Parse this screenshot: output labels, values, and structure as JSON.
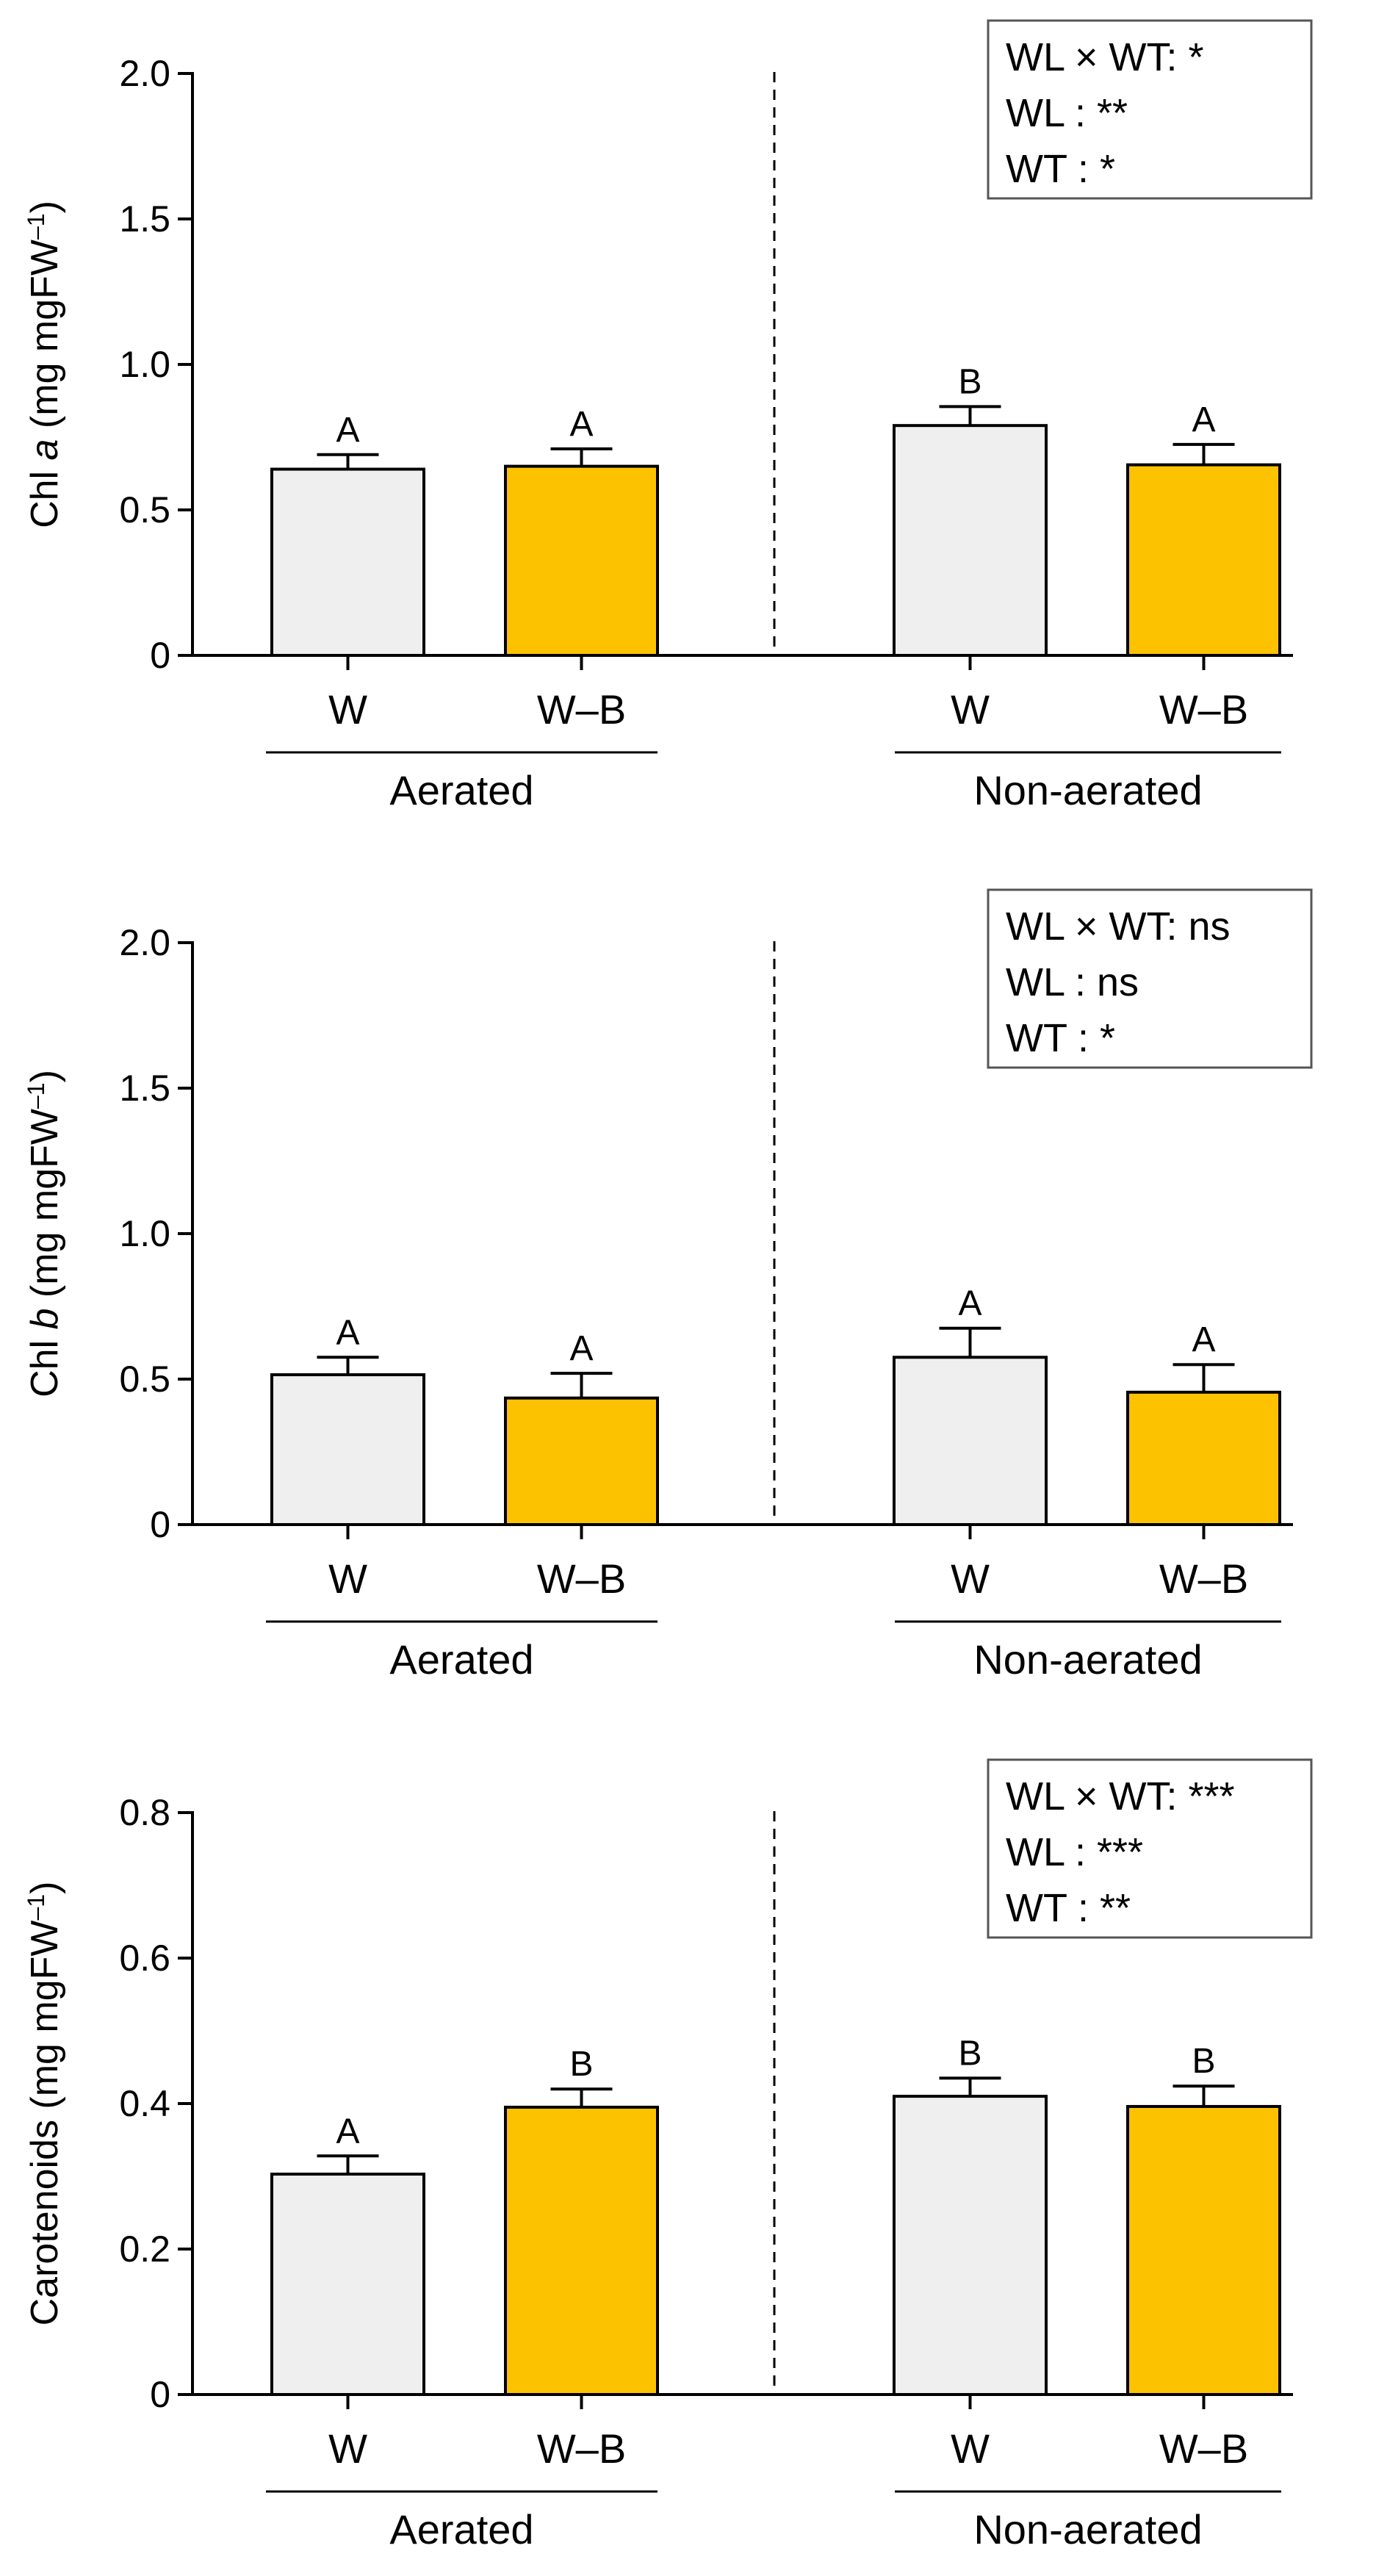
{
  "chart_data": [
    {
      "type": "bar",
      "ylabel_parts": [
        {
          "text": "Chl ",
          "italic": false,
          "sup": false
        },
        {
          "text": "a",
          "italic": true,
          "sup": false
        },
        {
          "text": " (mg mgFW",
          "italic": false,
          "sup": false
        },
        {
          "text": "–1",
          "italic": false,
          "sup": true
        },
        {
          "text": ")",
          "italic": false,
          "sup": false
        }
      ],
      "ylim": [
        0,
        2.0
      ],
      "yticks": [
        "0",
        "0.5",
        "1.0",
        "1.5",
        "2.0"
      ],
      "ytick_values": [
        0,
        0.5,
        1.0,
        1.5,
        2.0
      ],
      "groups": [
        {
          "name": "Aerated",
          "bars": [
            {
              "category": "W",
              "value": 0.64,
              "error": 0.05,
              "letter": "A",
              "color": "#efefef"
            },
            {
              "category": "W–B",
              "value": 0.65,
              "error": 0.06,
              "letter": "A",
              "color": "#fcc200"
            }
          ]
        },
        {
          "name": "Non-aerated",
          "bars": [
            {
              "category": "W",
              "value": 0.79,
              "error": 0.065,
              "letter": "B",
              "color": "#efefef"
            },
            {
              "category": "W–B",
              "value": 0.655,
              "error": 0.07,
              "letter": "A",
              "color": "#fcc200"
            }
          ]
        }
      ],
      "stats": [
        "WL × WT: *",
        "WL : **",
        "WT : *"
      ]
    },
    {
      "type": "bar",
      "ylabel_parts": [
        {
          "text": "Chl ",
          "italic": false,
          "sup": false
        },
        {
          "text": "b",
          "italic": true,
          "sup": false
        },
        {
          "text": " (mg mgFW",
          "italic": false,
          "sup": false
        },
        {
          "text": "–1",
          "italic": false,
          "sup": true
        },
        {
          "text": ")",
          "italic": false,
          "sup": false
        }
      ],
      "ylim": [
        0,
        2.0
      ],
      "yticks": [
        "0",
        "0.5",
        "1.0",
        "1.5",
        "2.0"
      ],
      "ytick_values": [
        0,
        0.5,
        1.0,
        1.5,
        2.0
      ],
      "groups": [
        {
          "name": "Aerated",
          "bars": [
            {
              "category": "W",
              "value": 0.515,
              "error": 0.06,
              "letter": "A",
              "color": "#efefef"
            },
            {
              "category": "W–B",
              "value": 0.435,
              "error": 0.085,
              "letter": "A",
              "color": "#fcc200"
            }
          ]
        },
        {
          "name": "Non-aerated",
          "bars": [
            {
              "category": "W",
              "value": 0.575,
              "error": 0.1,
              "letter": "A",
              "color": "#efefef"
            },
            {
              "category": "W–B",
              "value": 0.455,
              "error": 0.095,
              "letter": "A",
              "color": "#fcc200"
            }
          ]
        }
      ],
      "stats": [
        "WL × WT: ns",
        "WL : ns",
        "WT : *"
      ]
    },
    {
      "type": "bar",
      "ylabel_parts": [
        {
          "text": "Carotenoids (mg mgFW",
          "italic": false,
          "sup": false
        },
        {
          "text": "–1",
          "italic": false,
          "sup": true
        },
        {
          "text": ")",
          "italic": false,
          "sup": false
        }
      ],
      "ylim": [
        0,
        0.8
      ],
      "yticks": [
        "0",
        "0.2",
        "0.4",
        "0.6",
        "0.8"
      ],
      "ytick_values": [
        0,
        0.2,
        0.4,
        0.6,
        0.8
      ],
      "groups": [
        {
          "name": "Aerated",
          "bars": [
            {
              "category": "W",
              "value": 0.303,
              "error": 0.025,
              "letter": "A",
              "color": "#efefef"
            },
            {
              "category": "W–B",
              "value": 0.395,
              "error": 0.025,
              "letter": "B",
              "color": "#fcc200"
            }
          ]
        },
        {
          "name": "Non-aerated",
          "bars": [
            {
              "category": "W",
              "value": 0.41,
              "error": 0.025,
              "letter": "B",
              "color": "#efefef"
            },
            {
              "category": "W–B",
              "value": 0.396,
              "error": 0.028,
              "letter": "B",
              "color": "#fcc200"
            }
          ]
        }
      ],
      "stats": [
        "WL × WT: ***",
        "WL : ***",
        "WT : **"
      ]
    }
  ]
}
